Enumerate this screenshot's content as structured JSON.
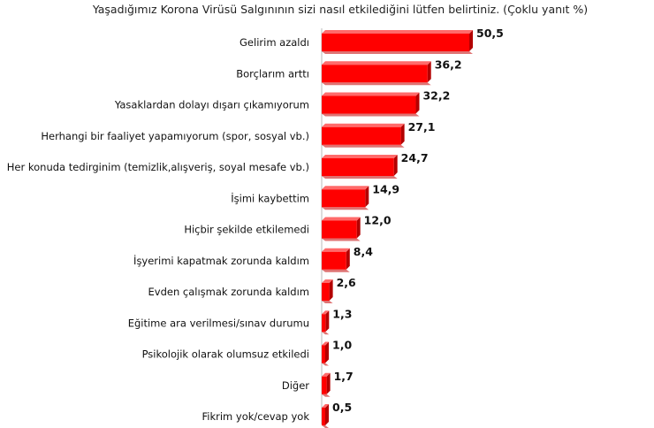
{
  "chart_data": {
    "type": "bar",
    "orientation": "horizontal",
    "title": "Yaşadığımız Korona Virüsü Salgınının sizi nasıl etkilediğini lütfen belirtiniz. (Çoklu yanıt %)",
    "categories": [
      "Gelirim azaldı",
      "Borçlarım arttı",
      "Yasaklardan dolayı dışarı çıkamıyorum",
      "Herhangi bir faaliyet yapamıyorum (spor, sosyal vb.)",
      "Her konuda tedirginim (temizlik,alışveriş, soyal mesafe vb.)",
      "İşimi kaybettim",
      "Hiçbir şekilde etkilemedi",
      "İşyerimi kapatmak zorunda kaldım",
      "Evden çalışmak zorunda kaldım",
      "Eğitime ara verilmesi/sınav durumu",
      "Psikolojik olarak olumsuz etkiledi",
      "Diğer",
      "Fikrim yok/cevap yok"
    ],
    "values": [
      50.5,
      36.2,
      32.2,
      27.1,
      24.7,
      14.9,
      12.0,
      8.4,
      2.6,
      1.3,
      1.0,
      1.7,
      0.5
    ],
    "value_labels": [
      "50,5",
      "36,2",
      "32,2",
      "27,1",
      "24,7",
      "14,9",
      "12,0",
      "8,4",
      "2,6",
      "1,3",
      "1,0",
      "1,7",
      "0,5"
    ],
    "xlim": [
      0,
      55
    ],
    "grid": false,
    "legend": "none",
    "colors": {
      "bar_front": "#ff0000",
      "bar_top": "#ff6a6a",
      "bar_side": "#b30000",
      "bar_shadow": "#c40000",
      "axis": "#b8b8b8"
    }
  }
}
